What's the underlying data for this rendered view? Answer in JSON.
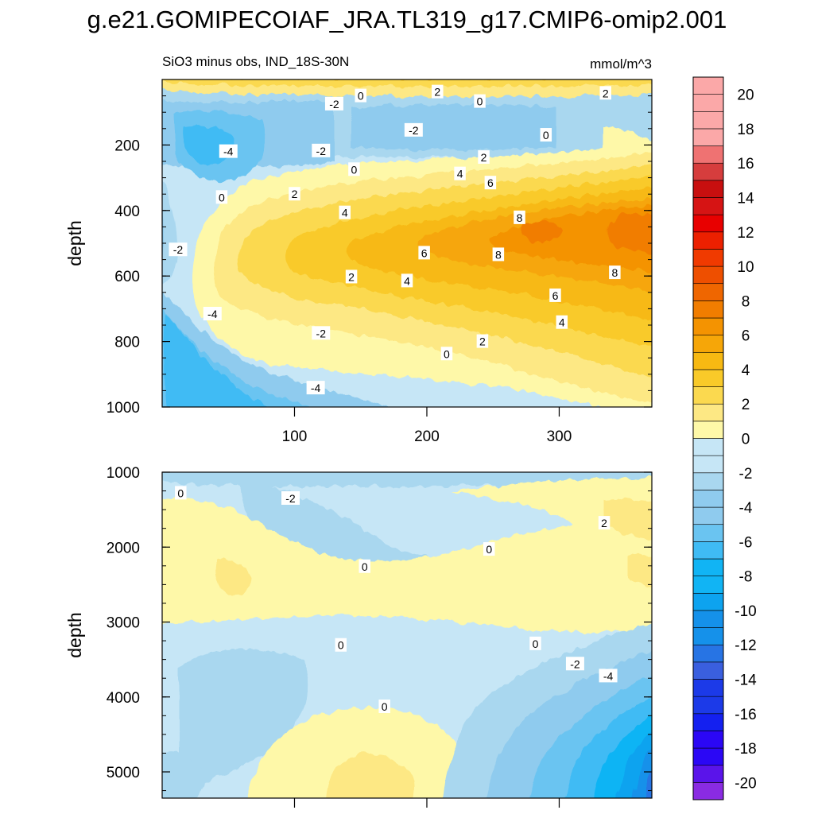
{
  "title": "g.e21.GOMIPECOIAF_JRA.TL319_g17.CMIP6-omip2.001",
  "subtitle_left": "SiO3 minus obs, IND_18S-30N",
  "subtitle_right": "mmol/m^3",
  "colors": {
    "below": [
      "#c6e6f6",
      "#a9d7ef",
      "#8fcbee",
      "#6ac4f1",
      "#3fbbf4",
      "#11b4f4",
      "#0da3ef",
      "#1591ea",
      "#2774e4",
      "#3a5fdf",
      "#1c3ae8",
      "#1420f0",
      "#2b07f5",
      "#5a14ea",
      "#8a2be2"
    ],
    "above": [
      "#fef8a8",
      "#fde884",
      "#fbd94f",
      "#f9ca29",
      "#f7b912",
      "#f6a608",
      "#f49301",
      "#f17d00",
      "#ef6600",
      "#ee4f00",
      "#f03a00",
      "#ec2000",
      "#e80000",
      "#d61414",
      "#c80f0f",
      "#d63d3d",
      "#ef7272",
      "#fba8a8"
    ]
  },
  "chart_data": [
    {
      "type": "contour",
      "panel": "upper",
      "xlabel": "",
      "ylabel": "depth",
      "xlim": [
        0,
        370
      ],
      "ylim": [
        1000,
        0
      ],
      "xticks": [
        100,
        200,
        300
      ],
      "yticks": [
        200,
        400,
        600,
        800,
        1000
      ],
      "contour_labels": [
        {
          "x": 150,
          "y": 50,
          "text": "0"
        },
        {
          "x": 130,
          "y": 75,
          "text": "-2"
        },
        {
          "x": 208,
          "y": 38,
          "text": "2"
        },
        {
          "x": 240,
          "y": 67,
          "text": "0"
        },
        {
          "x": 335,
          "y": 42,
          "text": "2"
        },
        {
          "x": 190,
          "y": 155,
          "text": "-2"
        },
        {
          "x": 50,
          "y": 220,
          "text": "-4"
        },
        {
          "x": 120,
          "y": 218,
          "text": "-2"
        },
        {
          "x": 145,
          "y": 275,
          "text": "0"
        },
        {
          "x": 290,
          "y": 170,
          "text": "0"
        },
        {
          "x": 243,
          "y": 238,
          "text": "2"
        },
        {
          "x": 225,
          "y": 288,
          "text": "4"
        },
        {
          "x": 248,
          "y": 316,
          "text": "6"
        },
        {
          "x": 100,
          "y": 350,
          "text": "2"
        },
        {
          "x": 45,
          "y": 360,
          "text": "0"
        },
        {
          "x": 138,
          "y": 407,
          "text": "4"
        },
        {
          "x": 270,
          "y": 422,
          "text": "8"
        },
        {
          "x": 12,
          "y": 520,
          "text": "-2"
        },
        {
          "x": 198,
          "y": 530,
          "text": "6"
        },
        {
          "x": 254,
          "y": 535,
          "text": "8"
        },
        {
          "x": 143,
          "y": 603,
          "text": "2"
        },
        {
          "x": 185,
          "y": 615,
          "text": "4"
        },
        {
          "x": 342,
          "y": 590,
          "text": "8"
        },
        {
          "x": 297,
          "y": 660,
          "text": "6"
        },
        {
          "x": 38,
          "y": 716,
          "text": "-4"
        },
        {
          "x": 302,
          "y": 742,
          "text": "4"
        },
        {
          "x": 120,
          "y": 775,
          "text": "-2"
        },
        {
          "x": 242,
          "y": 800,
          "text": "2"
        },
        {
          "x": 215,
          "y": 838,
          "text": "0"
        },
        {
          "x": 116,
          "y": 942,
          "text": "-4"
        }
      ]
    },
    {
      "type": "contour",
      "panel": "lower",
      "xlabel": "",
      "ylabel": "depth",
      "xlim": [
        0,
        370
      ],
      "ylim": [
        5350,
        1000
      ],
      "yticks": [
        1000,
        2000,
        3000,
        4000,
        5000
      ],
      "contour_labels": [
        {
          "x": 14,
          "y": 1280,
          "text": "0"
        },
        {
          "x": 97,
          "y": 1350,
          "text": "-2"
        },
        {
          "x": 334,
          "y": 1680,
          "text": "2"
        },
        {
          "x": 247,
          "y": 2030,
          "text": "0"
        },
        {
          "x": 153,
          "y": 2260,
          "text": "0"
        },
        {
          "x": 135,
          "y": 3310,
          "text": "0"
        },
        {
          "x": 282,
          "y": 3290,
          "text": "0"
        },
        {
          "x": 312,
          "y": 3560,
          "text": "-2"
        },
        {
          "x": 337,
          "y": 3720,
          "text": "-4"
        },
        {
          "x": 168,
          "y": 4130,
          "text": "0"
        }
      ]
    },
    {
      "type": "colorbar",
      "levels": [
        -20,
        -18,
        -16,
        -14,
        -12,
        -10,
        -8,
        -6,
        -4,
        -2,
        0,
        2,
        4,
        6,
        8,
        10,
        12,
        14,
        16,
        18,
        20
      ],
      "range": [
        -21,
        21
      ],
      "bin_width": 1
    }
  ]
}
